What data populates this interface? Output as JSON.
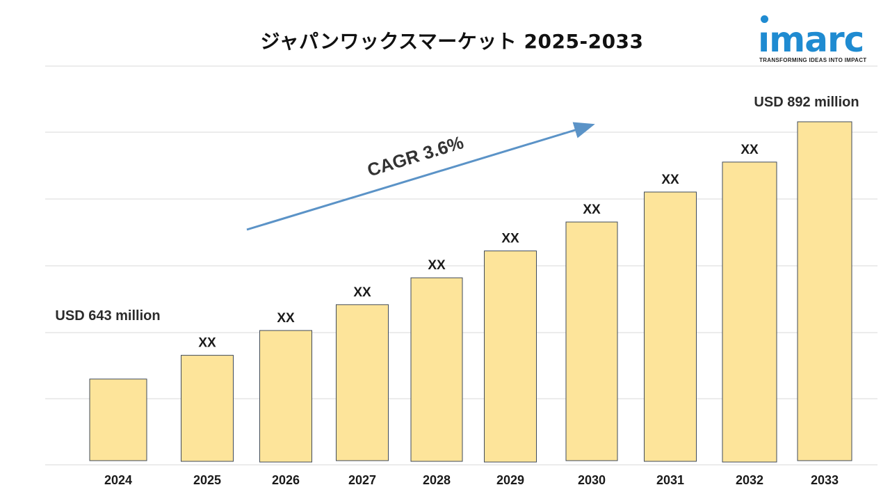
{
  "header": {
    "title": "ジャパンワックスマーケット 2025-2033"
  },
  "logo": {
    "word": "ımarc",
    "tagline": "TRANSFORMING IDEAS INTO IMPACT"
  },
  "colors": {
    "bar_fill": "#fde49a",
    "bar_stroke": "#3f4a5a",
    "arrow": "#5b93c7",
    "grid": "#d9d9d9",
    "brand": "#1f8bd1"
  },
  "chart_data": {
    "type": "bar",
    "categories": [
      "2024",
      "2025",
      "2026",
      "2027",
      "2028",
      "2029",
      "2030",
      "2031",
      "2032",
      "2033"
    ],
    "values": [
      643,
      666,
      690,
      715,
      741,
      767,
      795,
      824,
      853,
      892
    ],
    "data_labels": [
      "",
      "XX",
      "XX",
      "XX",
      "XX",
      "XX",
      "XX",
      "XX",
      "XX",
      ""
    ],
    "callouts": {
      "first": "USD 643 million",
      "last": "USD 892 million"
    },
    "annotation": "CAGR 3.6%",
    "grid": true,
    "legend": "none"
  }
}
